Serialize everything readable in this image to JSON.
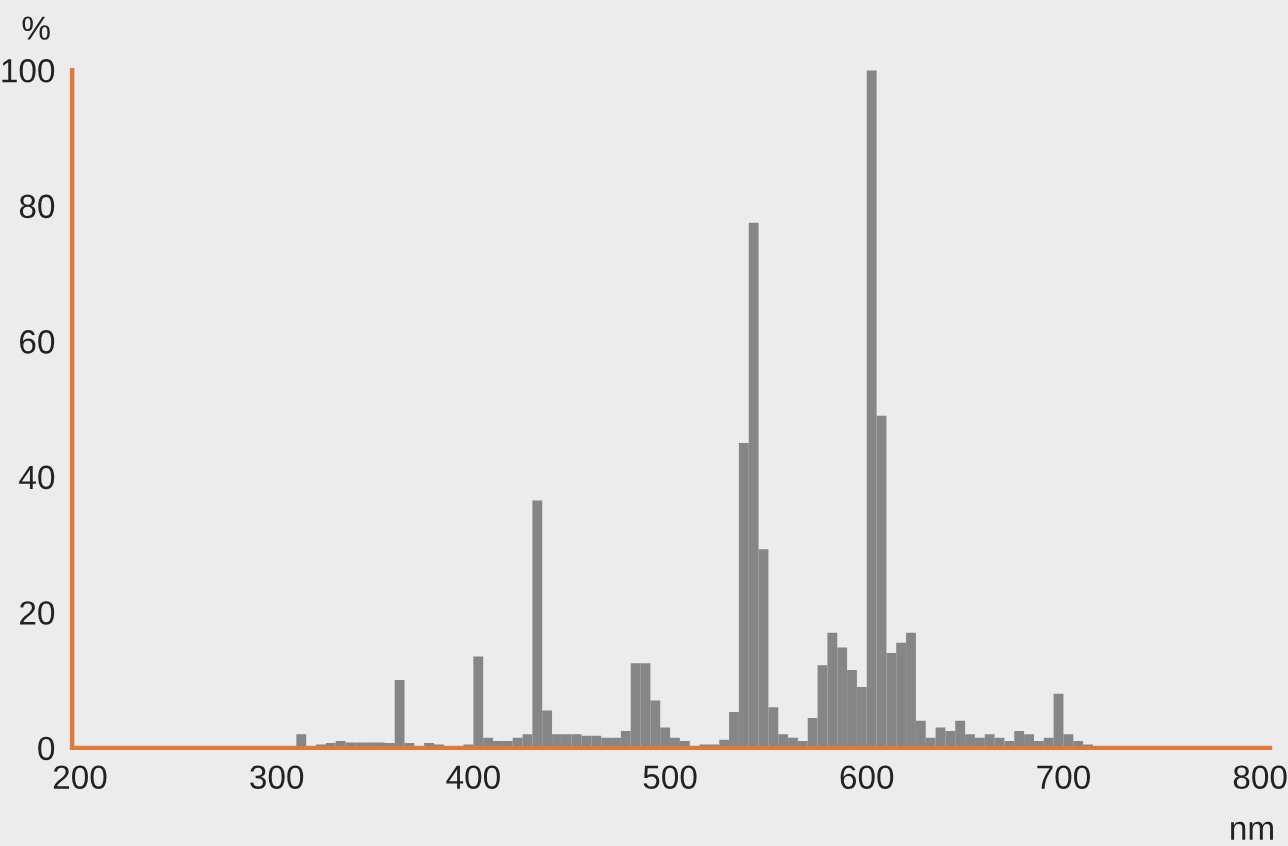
{
  "chart_data": {
    "type": "histogram",
    "xlabel": "nm",
    "ylabel": "%",
    "bins": [
      300,
      305,
      310,
      315,
      320,
      325,
      330,
      335,
      340,
      345,
      350,
      355,
      360,
      365,
      370,
      375,
      380,
      385,
      390,
      395,
      400,
      405,
      410,
      415,
      420,
      425,
      430,
      435,
      440,
      445,
      450,
      455,
      460,
      465,
      470,
      475,
      480,
      485,
      490,
      495,
      500,
      505,
      510,
      515,
      520,
      525,
      530,
      535,
      540,
      545,
      550,
      555,
      560,
      565,
      570,
      575,
      580,
      585,
      590,
      595,
      600,
      605,
      610,
      615,
      620,
      625,
      630,
      635,
      640,
      645,
      650,
      655,
      660,
      665,
      670,
      675,
      680,
      685,
      690,
      695,
      700,
      705,
      710,
      715,
      720
    ],
    "values": [
      0,
      0,
      2,
      0,
      0.5,
      0.7,
      1,
      0.8,
      0.8,
      0.8,
      0.8,
      0.7,
      10,
      0.7,
      null,
      0.7,
      0.5,
      null,
      null,
      0.5,
      13.5,
      1.5,
      1,
      1,
      1.5,
      2,
      36.5,
      5.5,
      2,
      2,
      2,
      1.8,
      1.8,
      1.5,
      1.5,
      2.5,
      12.5,
      12.5,
      7,
      3,
      1.5,
      1,
      null,
      0.5,
      0.5,
      1.2,
      5.3,
      45,
      77.5,
      29.3,
      6,
      2,
      1.5,
      1,
      4.4,
      12.2,
      17,
      14.8,
      11.5,
      9,
      100,
      49,
      14,
      15.5,
      17,
      4,
      1.5,
      3,
      2.5,
      4,
      2,
      1.5,
      2,
      1.5,
      1,
      2.5,
      2,
      1,
      1.5,
      8,
      2,
      1,
      0.5,
      null
    ],
    "color": "#868686",
    "xlim": [
      196,
      805
    ],
    "ylim": [
      0,
      100
    ],
    "xticks": [
      200,
      300,
      400,
      500,
      600,
      700,
      800
    ],
    "yticks": [
      0,
      20,
      40,
      60,
      80,
      100
    ],
    "grid": false,
    "legend": false
  }
}
